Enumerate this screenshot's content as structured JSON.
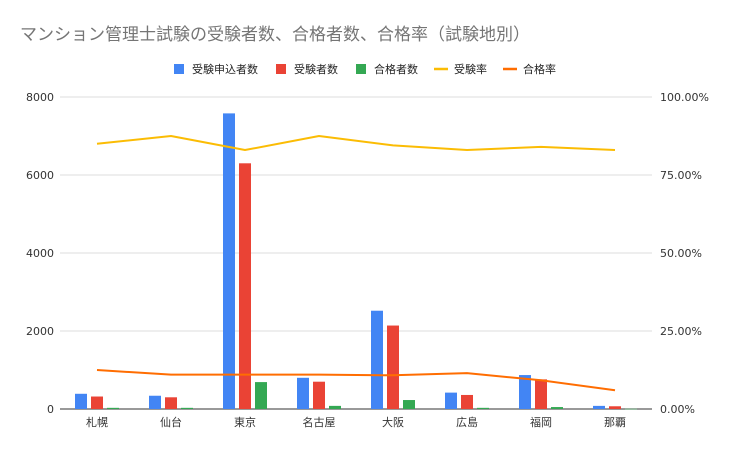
{
  "chart_data": {
    "type": "bar",
    "title": "マンション管理士試験の受験者数、合格者数、合格率（試験地別）",
    "categories": [
      "札幌",
      "仙台",
      "東京",
      "名古屋",
      "大阪",
      "広島",
      "福岡",
      "那覇"
    ],
    "series": [
      {
        "name": "受験申込者数",
        "axis": "left",
        "kind": "bar",
        "color": "#4285f4",
        "values": [
          390,
          340,
          7580,
          800,
          2520,
          420,
          870,
          80
        ]
      },
      {
        "name": "受験者数",
        "axis": "left",
        "kind": "bar",
        "color": "#ea4335",
        "values": [
          320,
          300,
          6300,
          700,
          2140,
          360,
          760,
          70
        ]
      },
      {
        "name": "合格者数",
        "axis": "left",
        "kind": "bar",
        "color": "#34a853",
        "values": [
          30,
          30,
          690,
          80,
          230,
          30,
          50,
          5
        ]
      },
      {
        "name": "受験率",
        "axis": "right",
        "kind": "line",
        "color": "#fbbc04",
        "values": [
          0.85,
          0.875,
          0.83,
          0.875,
          0.845,
          0.83,
          0.84,
          0.83
        ]
      },
      {
        "name": "合格率",
        "axis": "right",
        "kind": "line",
        "color": "#ff6d01",
        "values": [
          0.125,
          0.11,
          0.11,
          0.11,
          0.108,
          0.115,
          0.092,
          0.06
        ]
      }
    ],
    "left_axis": {
      "ylim": [
        0,
        8000
      ],
      "ticks": [
        "0",
        "2000",
        "4000",
        "6000",
        "8000"
      ]
    },
    "right_axis": {
      "ylim": [
        0,
        1
      ],
      "ticks": [
        "0.00%",
        "25.00%",
        "50.00%",
        "75.00%",
        "100.00%"
      ]
    },
    "legend_position": "top",
    "grid": true
  }
}
